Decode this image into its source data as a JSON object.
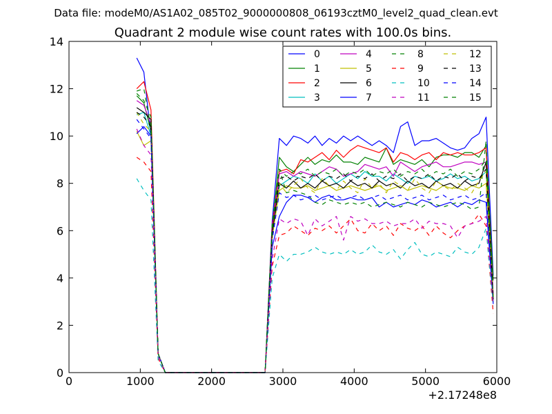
{
  "figure": {
    "suptitle": "Data file: modeM0/AS1A02_085T02_9000000808_06193cztM0_level2_quad_clean.evt"
  },
  "colors": {
    "0": "#0000ff",
    "1": "#008000",
    "2": "#ff0000",
    "3": "#00bfbf",
    "4": "#bf00bf",
    "5": "#bfbf00",
    "6": "#000000",
    "7": "#0000ff",
    "8": "#008000",
    "9": "#ff0000",
    "10": "#00bfbf",
    "11": "#bf00bf",
    "12": "#bfbf00",
    "13": "#000000",
    "14": "#0000ff",
    "15": "#008000"
  },
  "chart_data": {
    "type": "line",
    "title": "Quadrant 2 module wise count rates with 100.0s bins.",
    "xlabel": "",
    "ylabel": "",
    "x_offset_label": "+2.17248e8",
    "xlim": [
      0,
      6000
    ],
    "ylim": [
      0,
      14
    ],
    "x_ticks": [
      0,
      1000,
      2000,
      3000,
      4000,
      5000,
      6000
    ],
    "y_ticks": [
      0,
      2,
      4,
      6,
      8,
      10,
      12,
      14
    ],
    "grid": false,
    "legend": {
      "position": "top-right",
      "columns": 4
    },
    "x": [
      950,
      1050,
      1150,
      1250,
      1350,
      1450,
      1550,
      1650,
      1750,
      1850,
      1950,
      2050,
      2150,
      2250,
      2350,
      2450,
      2550,
      2650,
      2750,
      2850,
      2950,
      3050,
      3150,
      3250,
      3350,
      3450,
      3550,
      3650,
      3750,
      3850,
      3950,
      4050,
      4150,
      4250,
      4350,
      4450,
      4550,
      4650,
      4750,
      4850,
      4950,
      5050,
      5150,
      5250,
      5350,
      5450,
      5550,
      5650,
      5750,
      5850,
      5950
    ],
    "series": [
      {
        "name": "0",
        "style": "solid",
        "values": [
          13.3,
          12.7,
          10.0,
          0.8,
          0,
          0,
          0,
          0,
          0,
          0,
          0,
          0,
          0,
          0,
          0,
          0,
          0,
          0,
          0,
          6.4,
          9.9,
          9.6,
          10.0,
          9.9,
          9.7,
          10.0,
          9.6,
          9.9,
          9.7,
          10.0,
          9.8,
          10.0,
          9.8,
          9.6,
          9.8,
          9.6,
          9.3,
          10.4,
          10.6,
          9.6,
          9.8,
          9.8,
          9.9,
          9.7,
          9.5,
          9.4,
          9.5,
          9.9,
          10.1,
          10.8,
          4.1
        ]
      },
      {
        "name": "1",
        "style": "solid",
        "values": [
          11.7,
          11.4,
          10.2,
          0.8,
          0,
          0,
          0,
          0,
          0,
          0,
          0,
          0,
          0,
          0,
          0,
          0,
          0,
          0,
          0,
          6.1,
          9.1,
          8.7,
          8.5,
          8.8,
          9.1,
          8.8,
          9.0,
          8.9,
          9.2,
          8.9,
          8.9,
          8.8,
          9.1,
          9.0,
          8.9,
          9.5,
          8.8,
          9.0,
          8.9,
          8.8,
          9.0,
          8.7,
          9.1,
          9.2,
          9.2,
          9.1,
          9.3,
          9.3,
          9.1,
          9.6,
          3.9
        ]
      },
      {
        "name": "2",
        "style": "solid",
        "values": [
          12.0,
          12.3,
          11.1,
          0.8,
          0,
          0,
          0,
          0,
          0,
          0,
          0,
          0,
          0,
          0,
          0,
          0,
          0,
          0,
          0,
          6.2,
          8.5,
          8.6,
          8.4,
          9.0,
          8.9,
          9.1,
          9.3,
          9.0,
          9.4,
          9.1,
          9.4,
          9.6,
          9.5,
          9.4,
          9.3,
          9.5,
          8.9,
          9.3,
          9.2,
          9.0,
          9.2,
          9.3,
          9.0,
          9.3,
          9.2,
          9.3,
          9.2,
          9.2,
          9.3,
          9.5,
          3.2
        ]
      },
      {
        "name": "3",
        "style": "solid",
        "values": [
          10.9,
          11.0,
          10.0,
          0.8,
          0,
          0,
          0,
          0,
          0,
          0,
          0,
          0,
          0,
          0,
          0,
          0,
          0,
          0,
          0,
          5.7,
          7.9,
          8.1,
          8.3,
          8.2,
          8.0,
          8.4,
          8.1,
          8.3,
          8.0,
          8.2,
          8.4,
          8.2,
          8.5,
          8.3,
          8.3,
          8.1,
          8.4,
          8.2,
          8.0,
          8.3,
          8.2,
          8.3,
          8.1,
          8.2,
          8.4,
          8.2,
          8.3,
          8.1,
          8.2,
          8.5,
          3.0
        ]
      },
      {
        "name": "4",
        "style": "solid",
        "values": [
          11.5,
          11.3,
          10.5,
          0.8,
          0,
          0,
          0,
          0,
          0,
          0,
          0,
          0,
          0,
          0,
          0,
          0,
          0,
          0,
          0,
          6.0,
          8.4,
          8.5,
          8.3,
          8.5,
          8.4,
          8.3,
          8.5,
          8.7,
          8.6,
          8.3,
          8.4,
          8.5,
          8.8,
          8.7,
          8.6,
          8.7,
          8.3,
          8.9,
          8.7,
          8.5,
          8.7,
          8.8,
          8.9,
          8.7,
          8.7,
          8.8,
          8.9,
          8.9,
          8.8,
          8.9,
          3.3
        ]
      },
      {
        "name": "5",
        "style": "solid",
        "values": [
          10.2,
          9.6,
          9.8,
          0.8,
          0,
          0,
          0,
          0,
          0,
          0,
          0,
          0,
          0,
          0,
          0,
          0,
          0,
          0,
          0,
          5.7,
          7.7,
          7.9,
          7.8,
          7.8,
          7.9,
          7.7,
          7.8,
          7.9,
          7.7,
          7.8,
          7.9,
          7.8,
          7.7,
          7.8,
          7.9,
          7.7,
          7.8,
          7.9,
          7.7,
          7.8,
          7.9,
          7.8,
          7.7,
          7.9,
          7.8,
          7.8,
          7.7,
          7.9,
          7.8,
          8.0,
          3.1
        ]
      },
      {
        "name": "6",
        "style": "solid",
        "values": [
          11.2,
          11.0,
          10.7,
          0.8,
          0,
          0,
          0,
          0,
          0,
          0,
          0,
          0,
          0,
          0,
          0,
          0,
          0,
          0,
          0,
          5.9,
          8.0,
          7.8,
          8.1,
          7.8,
          8.0,
          7.8,
          8.1,
          7.9,
          8.0,
          7.8,
          8.1,
          7.9,
          8.0,
          7.8,
          8.1,
          7.9,
          8.0,
          7.8,
          8.1,
          7.9,
          8.0,
          7.8,
          8.1,
          7.9,
          8.0,
          7.8,
          8.1,
          7.9,
          8.0,
          8.9,
          3.1
        ]
      },
      {
        "name": "7",
        "style": "solid",
        "values": [
          10.1,
          10.4,
          10.0,
          0.8,
          0,
          0,
          0,
          0,
          0,
          0,
          0,
          0,
          0,
          0,
          0,
          0,
          0,
          0,
          0,
          5.3,
          6.6,
          7.2,
          7.5,
          7.5,
          7.4,
          7.2,
          7.4,
          7.5,
          7.3,
          7.3,
          7.4,
          7.3,
          7.3,
          7.4,
          7.0,
          7.2,
          7.0,
          7.1,
          7.2,
          7.1,
          7.3,
          7.2,
          7.0,
          7.1,
          7.2,
          7.0,
          7.2,
          7.1,
          7.3,
          7.2,
          2.9
        ]
      },
      {
        "name": "8",
        "style": "dashed",
        "values": [
          11.9,
          12.0,
          10.3,
          0.8,
          0,
          0,
          0,
          0,
          0,
          0,
          0,
          0,
          0,
          0,
          0,
          0,
          0,
          0,
          0,
          6.3,
          8.6,
          7.6,
          7.7,
          7.6,
          7.5,
          7.2,
          7.1,
          7.3,
          7.2,
          7.1,
          7.2,
          7.1,
          7.2,
          7.0,
          7.1,
          7.2,
          7.1,
          7.0,
          7.2,
          7.1,
          7.0,
          7.2,
          7.1,
          7.0,
          7.1,
          7.2,
          7.1,
          6.9,
          7.0,
          9.8,
          3.0
        ]
      },
      {
        "name": "9",
        "style": "dashed",
        "values": [
          9.1,
          8.9,
          8.5,
          0.6,
          0,
          0,
          0,
          0,
          0,
          0,
          0,
          0,
          0,
          0,
          0,
          0,
          0,
          0,
          0,
          4.5,
          5.8,
          5.9,
          6.2,
          6.0,
          5.8,
          6.1,
          6.0,
          6.2,
          5.9,
          6.2,
          6.5,
          6.0,
          5.9,
          6.3,
          6.0,
          6.2,
          5.8,
          6.3,
          6.1,
          6.0,
          6.2,
          5.8,
          6.2,
          5.9,
          5.7,
          6.0,
          6.2,
          6.3,
          6.7,
          6.2,
          2.5
        ]
      },
      {
        "name": "10",
        "style": "dashed",
        "values": [
          8.2,
          7.7,
          7.3,
          0.5,
          0,
          0,
          0,
          0,
          0,
          0,
          0,
          0,
          0,
          0,
          0,
          0,
          0,
          0,
          0,
          4.0,
          5.0,
          4.7,
          5.0,
          5.0,
          5.1,
          5.3,
          5.1,
          5.0,
          5.1,
          5.0,
          5.2,
          5.0,
          5.1,
          5.4,
          5.1,
          5.0,
          5.2,
          4.8,
          5.2,
          5.5,
          5.0,
          4.9,
          5.1,
          5.0,
          4.9,
          5.3,
          5.1,
          5.0,
          5.3,
          6.1,
          2.8
        ]
      },
      {
        "name": "11",
        "style": "dashed",
        "values": [
          10.3,
          9.6,
          9.2,
          0.7,
          0,
          0,
          0,
          0,
          0,
          0,
          0,
          0,
          0,
          0,
          0,
          0,
          0,
          0,
          0,
          4.8,
          6.5,
          6.3,
          6.5,
          6.4,
          5.8,
          6.5,
          6.2,
          6.4,
          6.6,
          5.6,
          6.6,
          6.4,
          6.5,
          6.3,
          6.3,
          6.4,
          6.2,
          6.3,
          6.3,
          6.5,
          6.1,
          6.4,
          6.3,
          6.3,
          6.2,
          5.7,
          6.2,
          6.3,
          6.4,
          6.6,
          2.9
        ]
      },
      {
        "name": "12",
        "style": "dashed",
        "values": [
          11.0,
          10.5,
          10.2,
          0.8,
          0,
          0,
          0,
          0,
          0,
          0,
          0,
          0,
          0,
          0,
          0,
          0,
          0,
          0,
          0,
          5.7,
          8.0,
          7.6,
          7.9,
          8.2,
          7.8,
          7.6,
          8.2,
          7.9,
          7.7,
          8.1,
          7.8,
          7.6,
          8.2,
          7.8,
          8.0,
          7.6,
          8.1,
          7.9,
          7.7,
          8.2,
          7.8,
          7.6,
          8.1,
          7.9,
          7.7,
          8.0,
          7.8,
          7.6,
          8.1,
          8.5,
          3.2
        ]
      },
      {
        "name": "13",
        "style": "dashed",
        "values": [
          11.0,
          10.8,
          10.4,
          0.8,
          0,
          0,
          0,
          0,
          0,
          0,
          0,
          0,
          0,
          0,
          0,
          0,
          0,
          0,
          0,
          5.8,
          8.2,
          8.3,
          8.1,
          8.3,
          8.2,
          8.4,
          8.1,
          8.3,
          8.2,
          8.4,
          8.1,
          8.3,
          8.2,
          8.4,
          8.1,
          8.3,
          8.2,
          8.4,
          8.1,
          8.3,
          8.2,
          8.4,
          8.1,
          8.3,
          8.2,
          8.4,
          8.1,
          8.3,
          8.2,
          8.6,
          3.1
        ]
      },
      {
        "name": "14",
        "style": "dashed",
        "values": [
          10.7,
          10.3,
          9.9,
          0.8,
          0,
          0,
          0,
          0,
          0,
          0,
          0,
          0,
          0,
          0,
          0,
          0,
          0,
          0,
          0,
          5.6,
          7.6,
          7.4,
          7.5,
          7.3,
          7.4,
          7.5,
          7.3,
          7.4,
          7.5,
          7.3,
          7.4,
          7.5,
          7.3,
          7.4,
          7.5,
          7.3,
          7.4,
          7.5,
          7.3,
          7.4,
          7.5,
          7.3,
          7.4,
          7.5,
          7.3,
          7.4,
          7.5,
          7.3,
          7.4,
          7.6,
          3.0
        ]
      },
      {
        "name": "15",
        "style": "dashed",
        "values": [
          11.8,
          11.5,
          10.8,
          0.8,
          0,
          0,
          0,
          0,
          0,
          0,
          0,
          0,
          0,
          0,
          0,
          0,
          0,
          0,
          0,
          6.0,
          8.6,
          8.3,
          8.5,
          8.4,
          8.6,
          8.3,
          8.5,
          8.4,
          8.6,
          8.3,
          8.5,
          8.4,
          8.6,
          8.3,
          8.5,
          8.4,
          8.6,
          8.3,
          8.5,
          8.4,
          8.6,
          8.3,
          8.5,
          8.4,
          8.6,
          8.3,
          8.5,
          8.4,
          8.6,
          9.0,
          3.1
        ]
      }
    ]
  }
}
